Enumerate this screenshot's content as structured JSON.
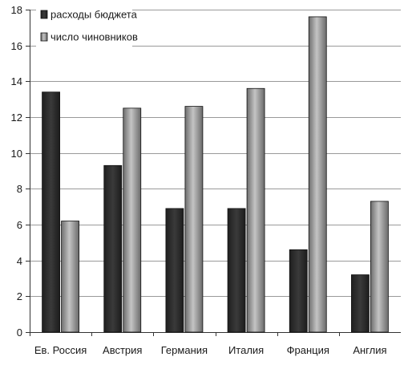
{
  "chart_data": {
    "type": "bar",
    "title": "",
    "xlabel": "",
    "ylabel": "",
    "ylim": [
      0,
      18
    ],
    "yticks": [
      0,
      2,
      4,
      6,
      8,
      10,
      12,
      14,
      16,
      18
    ],
    "grid": true,
    "legend_position": "top-left",
    "categories": [
      "Ев. Россия",
      "Австрия",
      "Германия",
      "Италия",
      "Франция",
      "Англия"
    ],
    "series": [
      {
        "name": "расходы бюджета",
        "color": "#2b2b2b",
        "values": [
          13.4,
          9.3,
          6.9,
          6.9,
          4.6,
          3.2
        ]
      },
      {
        "name": "число чиновников",
        "color": "#8c8c8c",
        "values": [
          6.2,
          12.5,
          12.6,
          13.6,
          17.6,
          7.3
        ]
      }
    ]
  }
}
